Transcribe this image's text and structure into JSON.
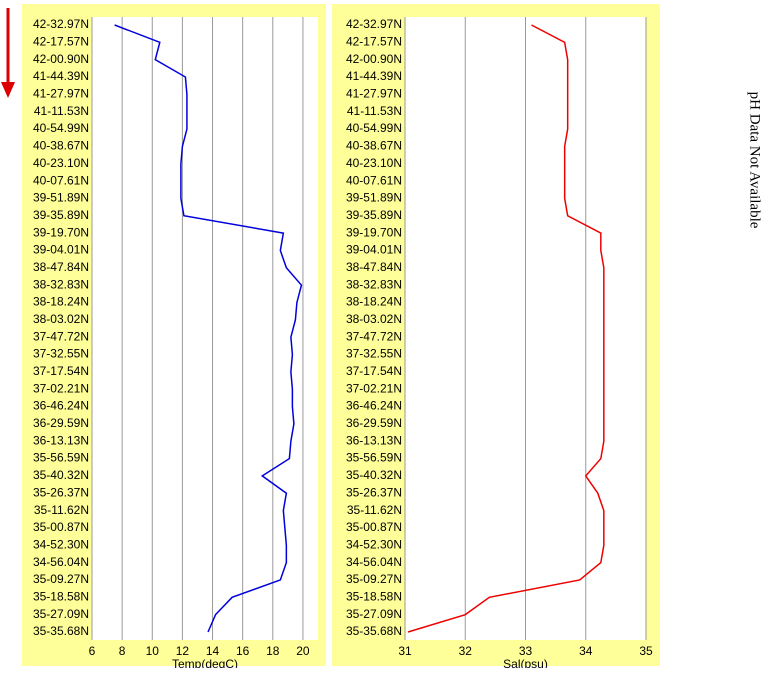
{
  "chart_data": [
    {
      "type": "line",
      "xlabel": "Temp(degC)",
      "color": "#0000dd",
      "categories": [
        "42-32.97N",
        "42-17.57N",
        "42-00.90N",
        "41-44.39N",
        "41-27.97N",
        "41-11.53N",
        "40-54.99N",
        "40-38.67N",
        "40-23.10N",
        "40-07.61N",
        "39-51.89N",
        "39-35.89N",
        "39-19.70N",
        "39-04.01N",
        "38-47.84N",
        "38-32.83N",
        "38-18.24N",
        "38-03.02N",
        "37-47.72N",
        "37-32.55N",
        "37-17.54N",
        "37-02.21N",
        "36-46.24N",
        "36-29.59N",
        "36-13.13N",
        "35-56.59N",
        "35-40.32N",
        "35-26.37N",
        "35-11.62N",
        "35-00.87N",
        "34-52.30N",
        "34-56.04N",
        "35-09.27N",
        "35-18.58N",
        "35-27.09N",
        "35-35.68N"
      ],
      "values": [
        7.5,
        10.5,
        10.2,
        12.2,
        12.3,
        12.3,
        12.3,
        12.0,
        11.9,
        11.9,
        11.9,
        12.1,
        18.7,
        18.5,
        18.9,
        19.9,
        19.6,
        19.5,
        19.2,
        19.3,
        19.2,
        19.3,
        19.3,
        19.4,
        19.2,
        19.1,
        17.3,
        18.9,
        18.7,
        18.8,
        18.9,
        18.9,
        18.5,
        15.3,
        14.2,
        13.7
      ],
      "xlim": [
        6,
        21
      ],
      "xticks": [
        6,
        8,
        10,
        12,
        14,
        16,
        18,
        20
      ],
      "grid": true
    },
    {
      "type": "line",
      "xlabel": "Sal(psu)",
      "color": "#ee0000",
      "categories": [
        "42-32.97N",
        "42-17.57N",
        "42-00.90N",
        "41-44.39N",
        "41-27.97N",
        "41-11.53N",
        "40-54.99N",
        "40-38.67N",
        "40-23.10N",
        "40-07.61N",
        "39-51.89N",
        "39-35.89N",
        "39-19.70N",
        "39-04.01N",
        "38-47.84N",
        "38-32.83N",
        "38-18.24N",
        "38-03.02N",
        "37-47.72N",
        "37-32.55N",
        "37-17.54N",
        "37-02.21N",
        "36-46.24N",
        "36-29.59N",
        "36-13.13N",
        "35-56.59N",
        "35-40.32N",
        "35-26.37N",
        "35-11.62N",
        "35-00.87N",
        "34-52.30N",
        "34-56.04N",
        "35-09.27N",
        "35-18.58N",
        "35-27.09N",
        "35-35.68N"
      ],
      "values": [
        33.1,
        33.65,
        33.7,
        33.7,
        33.7,
        33.7,
        33.7,
        33.65,
        33.65,
        33.65,
        33.65,
        33.7,
        34.25,
        34.25,
        34.3,
        34.3,
        34.3,
        34.3,
        34.3,
        34.3,
        34.3,
        34.3,
        34.3,
        34.3,
        34.3,
        34.25,
        34.0,
        34.2,
        34.3,
        34.3,
        34.3,
        34.25,
        33.9,
        32.4,
        32.0,
        31.05
      ],
      "xlim": [
        31,
        35
      ],
      "xticks": [
        31,
        32,
        33,
        34,
        35
      ],
      "grid": true
    }
  ],
  "notice": "pH Data Not Available"
}
